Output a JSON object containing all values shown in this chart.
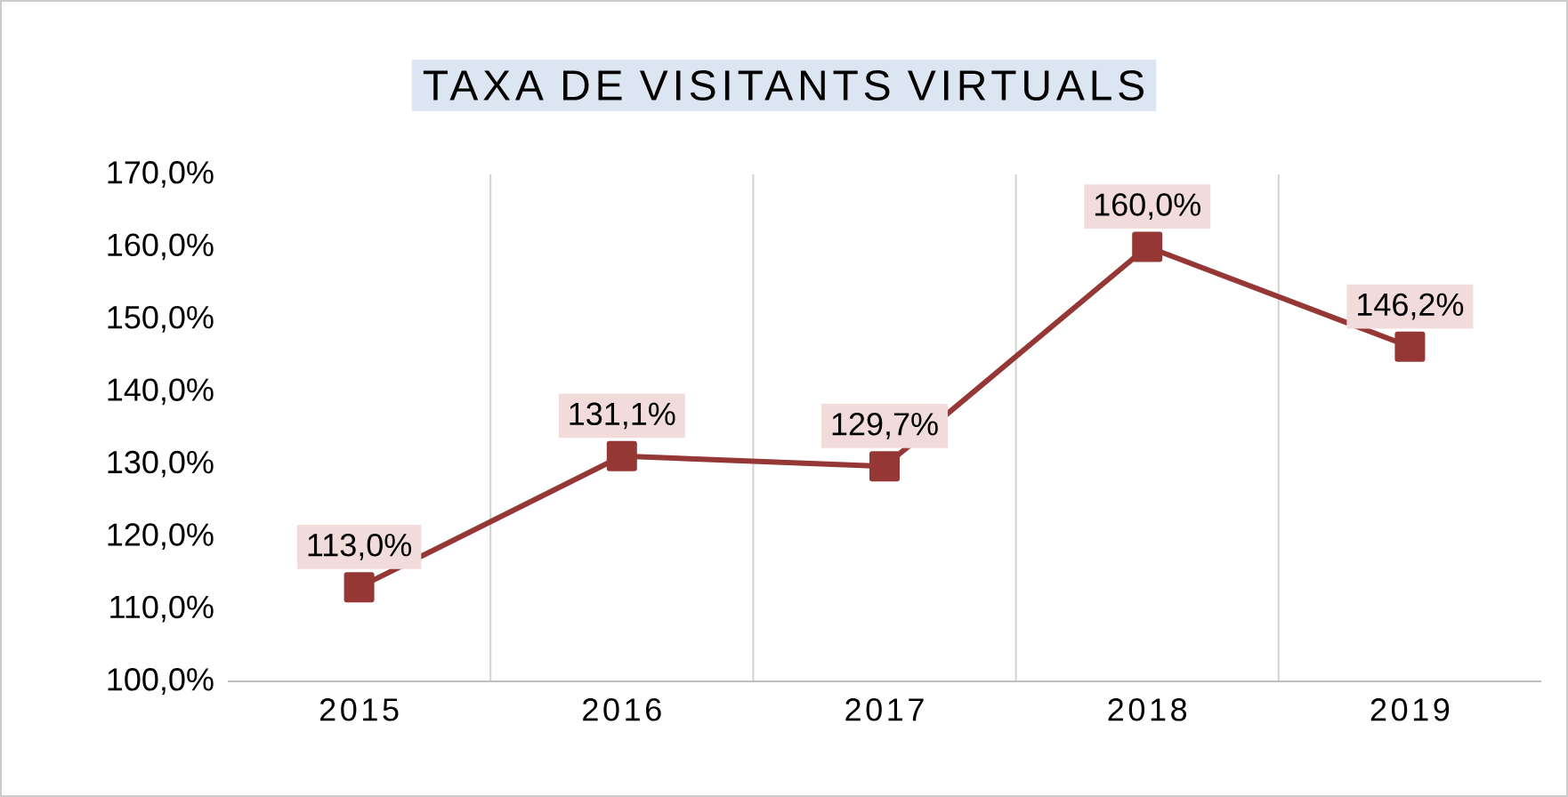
{
  "chart_data": {
    "type": "line",
    "title": "TAXA DE VISITANTS VIRTUALS",
    "categories": [
      "2015",
      "2016",
      "2017",
      "2018",
      "2019"
    ],
    "values": [
      113.0,
      131.1,
      129.7,
      160.0,
      146.2
    ],
    "value_labels": [
      "113,0%",
      "131,1%",
      "129,7%",
      "160,0%",
      "146,2%"
    ],
    "color": "#953735",
    "marker": "square",
    "line_style": "solid",
    "grid": "x",
    "ylim": [
      100,
      170
    ],
    "yticks": [
      {
        "value": 100,
        "label": "100,0%"
      },
      {
        "value": 110,
        "label": "110,0%"
      },
      {
        "value": 120,
        "label": "120,0%"
      },
      {
        "value": 130,
        "label": "130,0%"
      },
      {
        "value": 140,
        "label": "140,0%"
      },
      {
        "value": 150,
        "label": "150,0%"
      },
      {
        "value": 160,
        "label": "160,0%"
      },
      {
        "value": 170,
        "label": "170,0%"
      }
    ]
  }
}
